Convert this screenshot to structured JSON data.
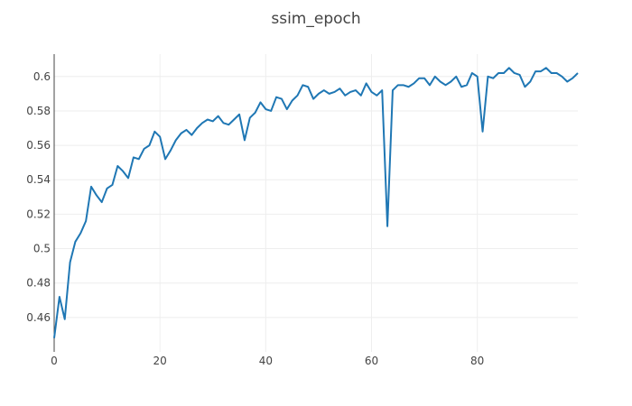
{
  "chart_data": {
    "type": "line",
    "title": "ssim_epoch",
    "xlabel": "",
    "ylabel": "",
    "xlim": [
      0,
      99
    ],
    "ylim": [
      0.44,
      0.613
    ],
    "grid": true,
    "legend": "none",
    "x_ticks": [
      0,
      20,
      40,
      60,
      80
    ],
    "x_tick_labels": [
      "0",
      "20",
      "40",
      "60",
      "80"
    ],
    "y_ticks": [
      0.46,
      0.48,
      0.5,
      0.52,
      0.54,
      0.56,
      0.58,
      0.6
    ],
    "y_tick_labels": [
      "0.46",
      "0.48",
      "0.5",
      "0.52",
      "0.54",
      "0.56",
      "0.58",
      "0.6"
    ],
    "colors": {
      "line": "#1f77b4",
      "grid": "#eeeeee",
      "axis": "#444444",
      "text": "#444444"
    },
    "series": [
      {
        "name": "",
        "x": [
          0,
          1,
          2,
          3,
          4,
          5,
          6,
          7,
          8,
          9,
          10,
          11,
          12,
          13,
          14,
          15,
          16,
          17,
          18,
          19,
          20,
          21,
          22,
          23,
          24,
          25,
          26,
          27,
          28,
          29,
          30,
          31,
          32,
          33,
          34,
          35,
          36,
          37,
          38,
          39,
          40,
          41,
          42,
          43,
          44,
          45,
          46,
          47,
          48,
          49,
          50,
          51,
          52,
          53,
          54,
          55,
          56,
          57,
          58,
          59,
          60,
          61,
          62,
          63,
          64,
          65,
          66,
          67,
          68,
          69,
          70,
          71,
          72,
          73,
          74,
          75,
          76,
          77,
          78,
          79,
          80,
          81,
          82,
          83,
          84,
          85,
          86,
          87,
          88,
          89,
          90,
          91,
          92,
          93,
          94,
          95,
          96,
          97,
          98,
          99
        ],
        "y": [
          0.448,
          0.472,
          0.459,
          0.492,
          0.504,
          0.509,
          0.516,
          0.536,
          0.531,
          0.527,
          0.535,
          0.537,
          0.548,
          0.545,
          0.541,
          0.553,
          0.552,
          0.558,
          0.56,
          0.568,
          0.565,
          0.552,
          0.557,
          0.563,
          0.567,
          0.569,
          0.566,
          0.57,
          0.573,
          0.575,
          0.574,
          0.577,
          0.573,
          0.572,
          0.575,
          0.578,
          0.563,
          0.576,
          0.579,
          0.585,
          0.581,
          0.58,
          0.588,
          0.587,
          0.581,
          0.586,
          0.589,
          0.595,
          0.594,
          0.587,
          0.59,
          0.592,
          0.59,
          0.591,
          0.593,
          0.589,
          0.591,
          0.592,
          0.589,
          0.596,
          0.591,
          0.589,
          0.592,
          0.513,
          0.592,
          0.595,
          0.595,
          0.594,
          0.596,
          0.599,
          0.599,
          0.595,
          0.6,
          0.597,
          0.595,
          0.597,
          0.6,
          0.594,
          0.595,
          0.602,
          0.6,
          0.568,
          0.6,
          0.599,
          0.602,
          0.602,
          0.605,
          0.602,
          0.601,
          0.594,
          0.597,
          0.603,
          0.603,
          0.605,
          0.602,
          0.602,
          0.6,
          0.597,
          0.599,
          0.602
        ]
      }
    ]
  }
}
